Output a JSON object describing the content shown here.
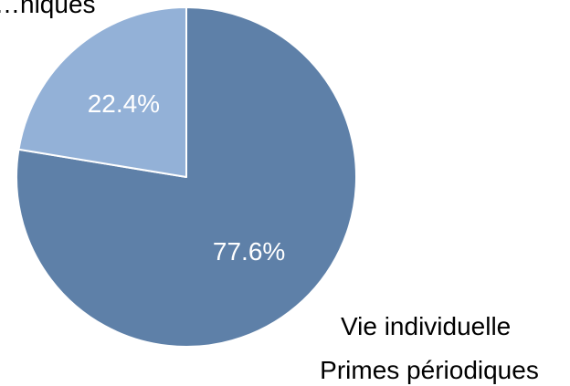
{
  "chart_data": {
    "type": "pie",
    "slices": [
      {
        "label_lines": [
          "Vie individuelle",
          "Primes périodiques"
        ],
        "value": 77.6,
        "value_label": "77.6%",
        "color": "#5e80a8"
      },
      {
        "label_lines": [
          "…niques"
        ],
        "value": 22.4,
        "value_label": "22.4%",
        "color": "#93b1d7"
      }
    ]
  }
}
